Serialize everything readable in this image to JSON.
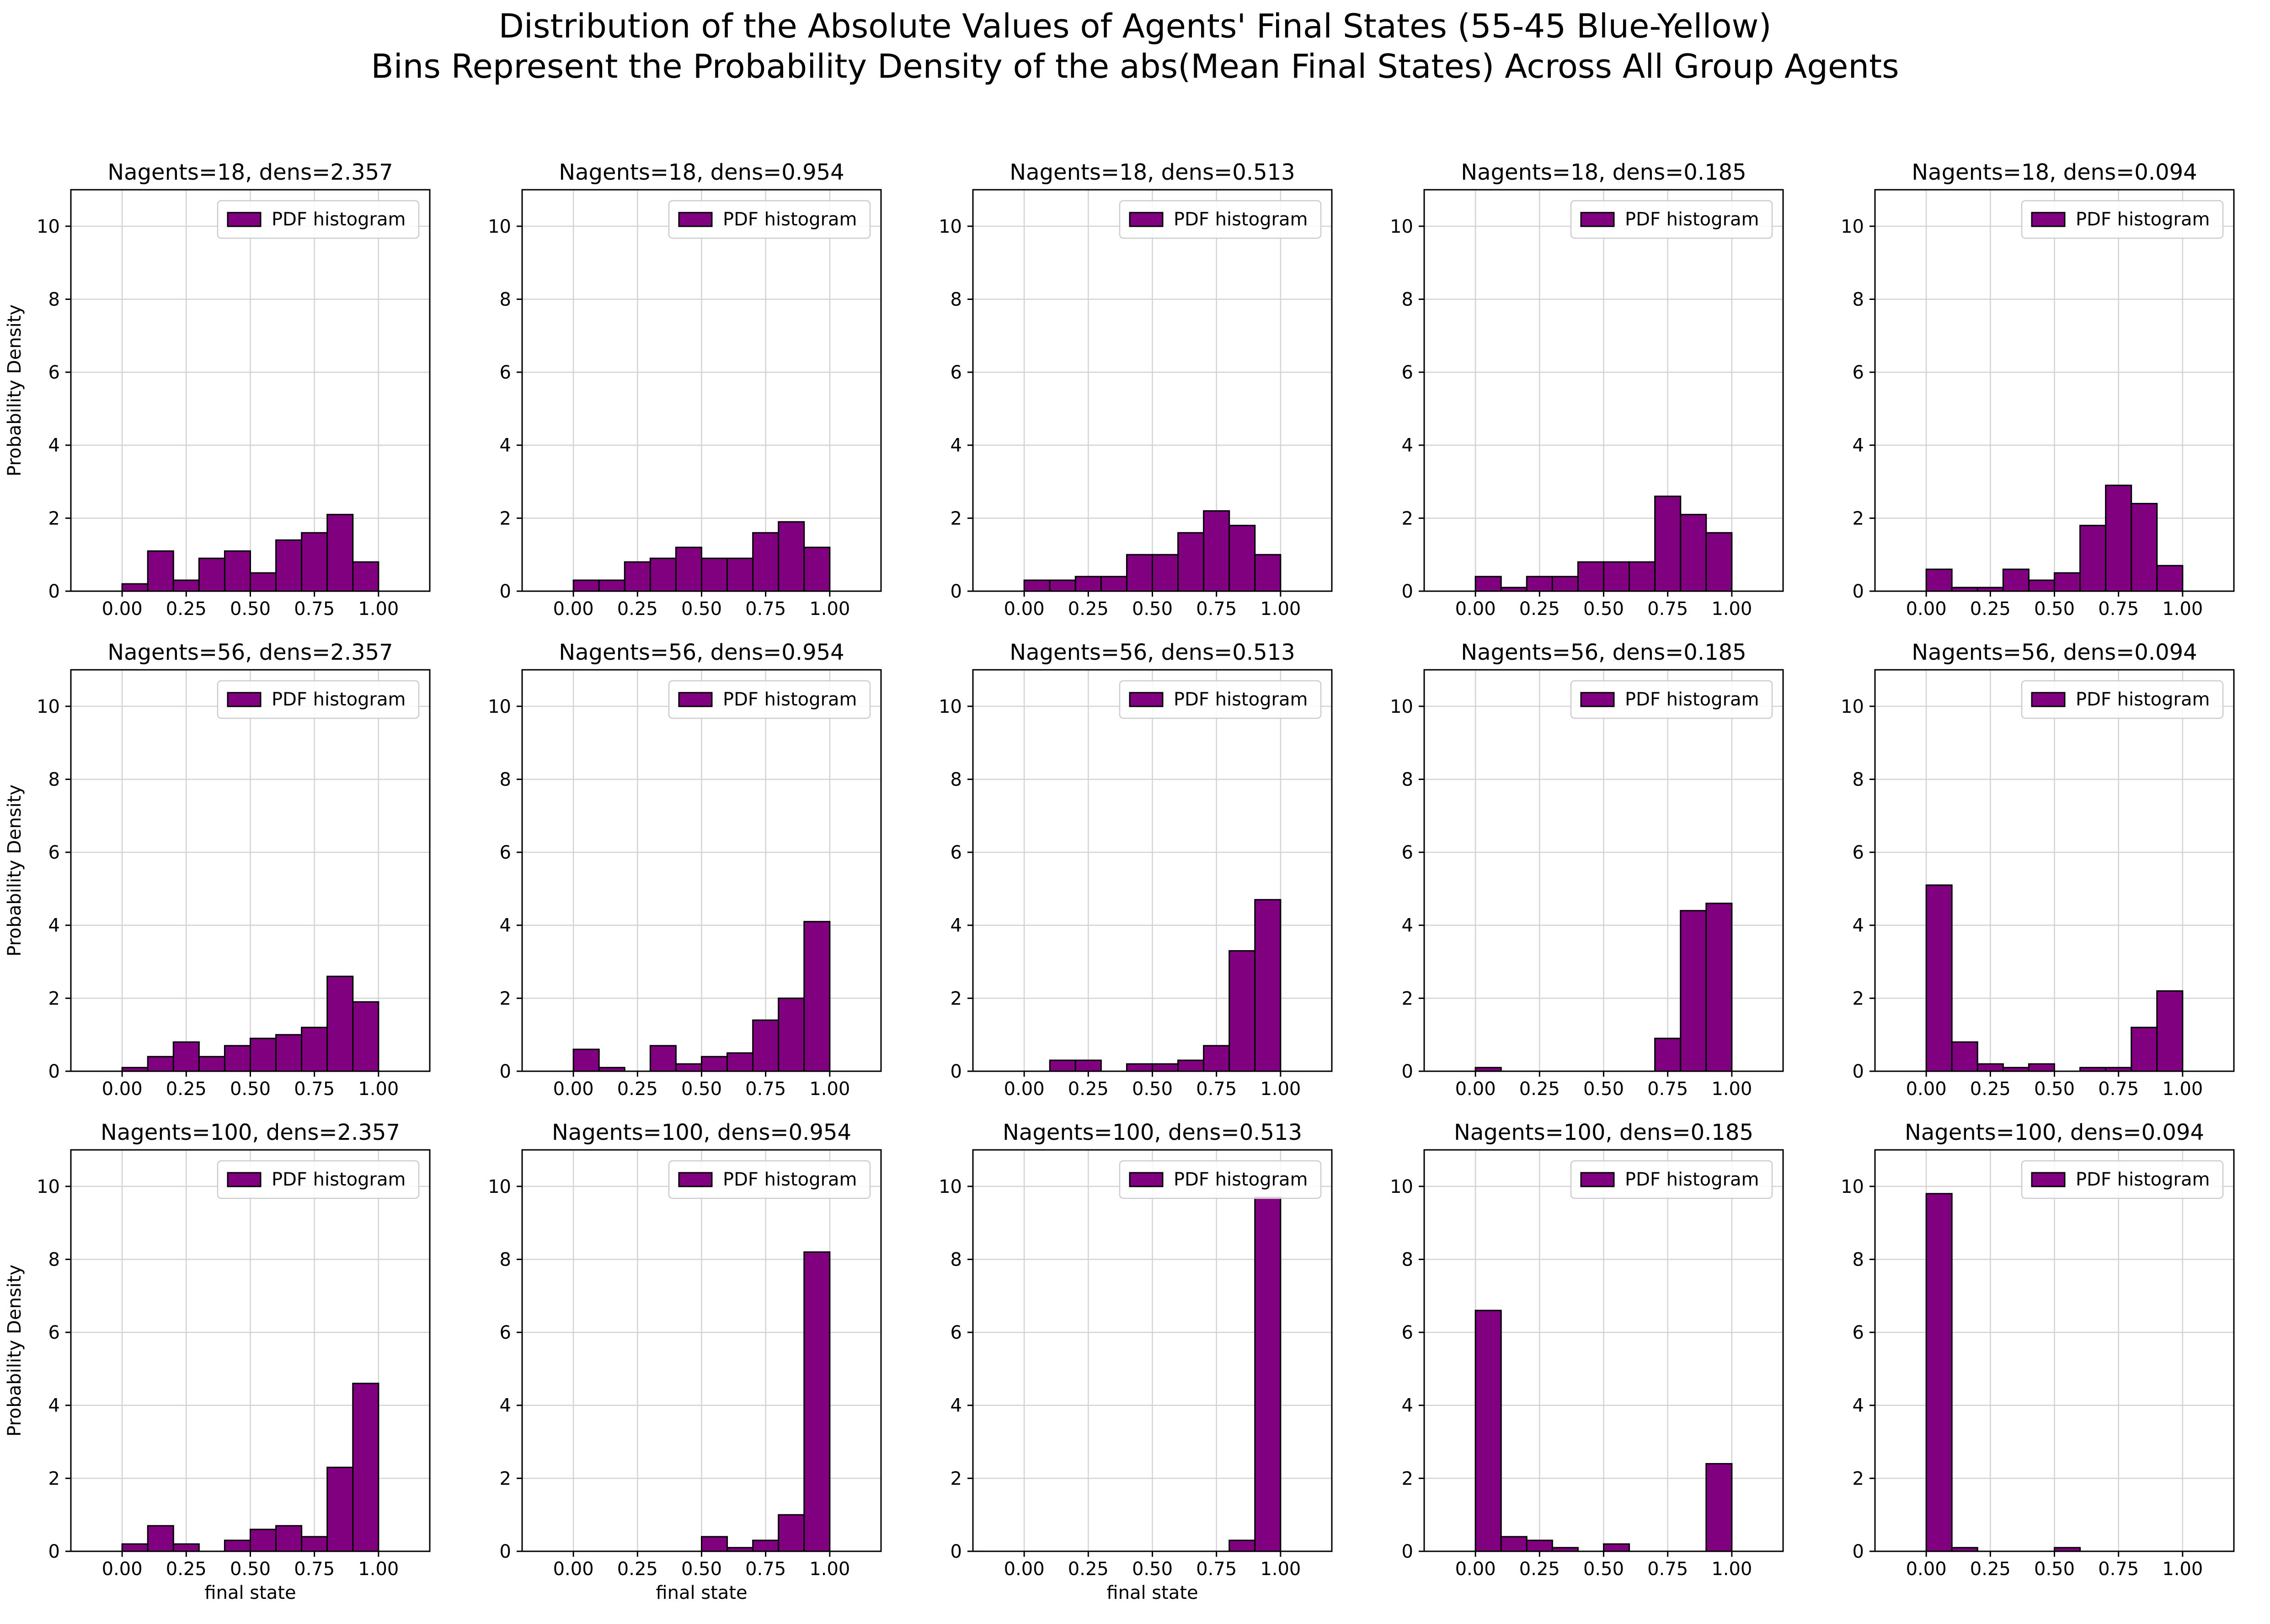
{
  "figure": {
    "title_line1": "Distribution of the Absolute Values of Agents' Final States (55-45 Blue-Yellow)",
    "title_line2": "Bins Represent the Probability Density of the abs(Mean Final States) Across All Group Agents"
  },
  "colors": {
    "bar": "#800080",
    "edge": "#000000",
    "grid": "#d3d3d3"
  },
  "chart_data": [
    {
      "type": "bar",
      "title": "Nagents=18, dens=2.357",
      "ylabel": "Probability Density",
      "xlabel": "",
      "legend": "PDF histogram",
      "legend_loc": "upper right",
      "grid": true,
      "xlim": [
        -0.2,
        1.2
      ],
      "ylim": [
        0,
        11
      ],
      "xticks": [
        "0.00",
        "0.25",
        "0.50",
        "0.75",
        "1.00"
      ],
      "yticks": [
        "0",
        "2",
        "4",
        "6",
        "8",
        "10"
      ],
      "bin_edges": [
        0,
        0.1,
        0.2,
        0.3,
        0.4,
        0.5,
        0.6,
        0.7,
        0.8,
        0.9,
        1.0
      ],
      "values": [
        0.2,
        1.1,
        0.3,
        0.9,
        1.1,
        0.5,
        1.4,
        1.6,
        2.1,
        0.8
      ]
    },
    {
      "type": "bar",
      "title": "Nagents=18, dens=0.954",
      "ylabel": "",
      "xlabel": "",
      "legend": "PDF histogram",
      "legend_loc": "upper right",
      "grid": true,
      "xlim": [
        -0.2,
        1.2
      ],
      "ylim": [
        0,
        11
      ],
      "xticks": [
        "0.00",
        "0.25",
        "0.50",
        "0.75",
        "1.00"
      ],
      "yticks": [
        "0",
        "2",
        "4",
        "6",
        "8",
        "10"
      ],
      "bin_edges": [
        0,
        0.1,
        0.2,
        0.3,
        0.4,
        0.5,
        0.6,
        0.7,
        0.8,
        0.9,
        1.0
      ],
      "values": [
        0.3,
        0.3,
        0.8,
        0.9,
        1.2,
        0.9,
        0.9,
        1.6,
        1.9,
        1.2
      ]
    },
    {
      "type": "bar",
      "title": "Nagents=18, dens=0.513",
      "ylabel": "",
      "xlabel": "",
      "legend": "PDF histogram",
      "legend_loc": "upper right",
      "grid": true,
      "xlim": [
        -0.2,
        1.2
      ],
      "ylim": [
        0,
        11
      ],
      "xticks": [
        "0.00",
        "0.25",
        "0.50",
        "0.75",
        "1.00"
      ],
      "yticks": [
        "0",
        "2",
        "4",
        "6",
        "8",
        "10"
      ],
      "bin_edges": [
        0,
        0.1,
        0.2,
        0.3,
        0.4,
        0.5,
        0.6,
        0.7,
        0.8,
        0.9,
        1.0
      ],
      "values": [
        0.3,
        0.3,
        0.4,
        0.4,
        1.0,
        1.0,
        1.6,
        2.2,
        1.8,
        1.0
      ]
    },
    {
      "type": "bar",
      "title": "Nagents=18, dens=0.185",
      "ylabel": "",
      "xlabel": "",
      "legend": "PDF histogram",
      "legend_loc": "upper right",
      "grid": true,
      "xlim": [
        -0.2,
        1.2
      ],
      "ylim": [
        0,
        11
      ],
      "xticks": [
        "0.00",
        "0.25",
        "0.50",
        "0.75",
        "1.00"
      ],
      "yticks": [
        "0",
        "2",
        "4",
        "6",
        "8",
        "10"
      ],
      "bin_edges": [
        0,
        0.1,
        0.2,
        0.3,
        0.4,
        0.5,
        0.6,
        0.7,
        0.8,
        0.9,
        1.0
      ],
      "values": [
        0.4,
        0.1,
        0.4,
        0.4,
        0.8,
        0.8,
        0.8,
        2.6,
        2.1,
        1.6
      ]
    },
    {
      "type": "bar",
      "title": "Nagents=18, dens=0.094",
      "ylabel": "",
      "xlabel": "",
      "legend": "PDF histogram",
      "legend_loc": "upper right",
      "grid": true,
      "xlim": [
        -0.2,
        1.2
      ],
      "ylim": [
        0,
        11
      ],
      "xticks": [
        "0.00",
        "0.25",
        "0.50",
        "0.75",
        "1.00"
      ],
      "yticks": [
        "0",
        "2",
        "4",
        "6",
        "8",
        "10"
      ],
      "bin_edges": [
        0,
        0.1,
        0.2,
        0.3,
        0.4,
        0.5,
        0.6,
        0.7,
        0.8,
        0.9,
        1.0
      ],
      "values": [
        0.6,
        0.1,
        0.1,
        0.6,
        0.3,
        0.5,
        1.8,
        2.9,
        2.4,
        0.7
      ]
    },
    {
      "type": "bar",
      "title": "Nagents=56, dens=2.357",
      "ylabel": "Probability Density",
      "xlabel": "",
      "legend": "PDF histogram",
      "legend_loc": "upper right",
      "grid": true,
      "xlim": [
        -0.2,
        1.2
      ],
      "ylim": [
        0,
        11
      ],
      "xticks": [
        "0.00",
        "0.25",
        "0.50",
        "0.75",
        "1.00"
      ],
      "yticks": [
        "0",
        "2",
        "4",
        "6",
        "8",
        "10"
      ],
      "bin_edges": [
        0,
        0.1,
        0.2,
        0.3,
        0.4,
        0.5,
        0.6,
        0.7,
        0.8,
        0.9,
        1.0
      ],
      "values": [
        0.1,
        0.4,
        0.8,
        0.4,
        0.7,
        0.9,
        1.0,
        1.2,
        2.6,
        1.9
      ]
    },
    {
      "type": "bar",
      "title": "Nagents=56, dens=0.954",
      "ylabel": "",
      "xlabel": "",
      "legend": "PDF histogram",
      "legend_loc": "upper right",
      "grid": true,
      "xlim": [
        -0.2,
        1.2
      ],
      "ylim": [
        0,
        11
      ],
      "xticks": [
        "0.00",
        "0.25",
        "0.50",
        "0.75",
        "1.00"
      ],
      "yticks": [
        "0",
        "2",
        "4",
        "6",
        "8",
        "10"
      ],
      "bin_edges": [
        0,
        0.1,
        0.2,
        0.3,
        0.4,
        0.5,
        0.6,
        0.7,
        0.8,
        0.9,
        1.0
      ],
      "values": [
        0.6,
        0.1,
        0.0,
        0.7,
        0.2,
        0.4,
        0.5,
        1.4,
        2.0,
        4.1
      ]
    },
    {
      "type": "bar",
      "title": "Nagents=56, dens=0.513",
      "ylabel": "",
      "xlabel": "",
      "legend": "PDF histogram",
      "legend_loc": "upper right",
      "grid": true,
      "xlim": [
        -0.2,
        1.2
      ],
      "ylim": [
        0,
        11
      ],
      "xticks": [
        "0.00",
        "0.25",
        "0.50",
        "0.75",
        "1.00"
      ],
      "yticks": [
        "0",
        "2",
        "4",
        "6",
        "8",
        "10"
      ],
      "bin_edges": [
        0,
        0.1,
        0.2,
        0.3,
        0.4,
        0.5,
        0.6,
        0.7,
        0.8,
        0.9,
        1.0
      ],
      "values": [
        0.0,
        0.3,
        0.3,
        0.0,
        0.2,
        0.2,
        0.3,
        0.7,
        3.3,
        4.7
      ]
    },
    {
      "type": "bar",
      "title": "Nagents=56, dens=0.185",
      "ylabel": "",
      "xlabel": "",
      "legend": "PDF histogram",
      "legend_loc": "upper right",
      "grid": true,
      "xlim": [
        -0.2,
        1.2
      ],
      "ylim": [
        0,
        11
      ],
      "xticks": [
        "0.00",
        "0.25",
        "0.50",
        "0.75",
        "1.00"
      ],
      "yticks": [
        "0",
        "2",
        "4",
        "6",
        "8",
        "10"
      ],
      "bin_edges": [
        0,
        0.1,
        0.2,
        0.3,
        0.4,
        0.5,
        0.6,
        0.7,
        0.8,
        0.9,
        1.0
      ],
      "values": [
        0.1,
        0.0,
        0.0,
        0.0,
        0.0,
        0.0,
        0.0,
        0.9,
        4.4,
        4.6
      ]
    },
    {
      "type": "bar",
      "title": "Nagents=56, dens=0.094",
      "ylabel": "",
      "xlabel": "",
      "legend": "PDF histogram",
      "legend_loc": "upper right",
      "grid": true,
      "xlim": [
        -0.2,
        1.2
      ],
      "ylim": [
        0,
        11
      ],
      "xticks": [
        "0.00",
        "0.25",
        "0.50",
        "0.75",
        "1.00"
      ],
      "yticks": [
        "0",
        "2",
        "4",
        "6",
        "8",
        "10"
      ],
      "bin_edges": [
        0,
        0.1,
        0.2,
        0.3,
        0.4,
        0.5,
        0.6,
        0.7,
        0.8,
        0.9,
        1.0
      ],
      "values": [
        5.1,
        0.8,
        0.2,
        0.1,
        0.2,
        0.0,
        0.1,
        0.1,
        1.2,
        2.2
      ]
    },
    {
      "type": "bar",
      "title": "Nagents=100, dens=2.357",
      "ylabel": "Probability  Density",
      "xlabel": "final state",
      "legend": "PDF histogram",
      "legend_loc": "upper right",
      "grid": true,
      "xlim": [
        -0.2,
        1.2
      ],
      "ylim": [
        0,
        11
      ],
      "xticks": [
        "0.00",
        "0.25",
        "0.50",
        "0.75",
        "1.00"
      ],
      "yticks": [
        "0",
        "2",
        "4",
        "6",
        "8",
        "10"
      ],
      "bin_edges": [
        0,
        0.1,
        0.2,
        0.3,
        0.4,
        0.5,
        0.6,
        0.7,
        0.8,
        0.9,
        1.0
      ],
      "values": [
        0.2,
        0.7,
        0.2,
        0.0,
        0.3,
        0.6,
        0.7,
        0.4,
        2.3,
        4.6
      ]
    },
    {
      "type": "bar",
      "title": "Nagents=100, dens=0.954",
      "ylabel": "",
      "xlabel": "final state",
      "legend": "PDF histogram",
      "legend_loc": "upper right",
      "grid": true,
      "xlim": [
        -0.2,
        1.2
      ],
      "ylim": [
        0,
        11
      ],
      "xticks": [
        "0.00",
        "0.25",
        "0.50",
        "0.75",
        "1.00"
      ],
      "yticks": [
        "0",
        "2",
        "4",
        "6",
        "8",
        "10"
      ],
      "bin_edges": [
        0,
        0.1,
        0.2,
        0.3,
        0.4,
        0.5,
        0.6,
        0.7,
        0.8,
        0.9,
        1.0
      ],
      "values": [
        0.0,
        0.0,
        0.0,
        0.0,
        0.0,
        0.4,
        0.1,
        0.3,
        1.0,
        8.2
      ]
    },
    {
      "type": "bar",
      "title": "Nagents=100, dens=0.513",
      "ylabel": "",
      "xlabel": "final state",
      "legend": "PDF histogram",
      "legend_loc": "upper right",
      "grid": true,
      "xlim": [
        -0.2,
        1.2
      ],
      "ylim": [
        0,
        11
      ],
      "xticks": [
        "0.00",
        "0.25",
        "0.50",
        "0.75",
        "1.00"
      ],
      "yticks": [
        "0",
        "2",
        "4",
        "6",
        "8",
        "10"
      ],
      "bin_edges": [
        0,
        0.1,
        0.2,
        0.3,
        0.4,
        0.5,
        0.6,
        0.7,
        0.8,
        0.9,
        1.0
      ],
      "values": [
        0.0,
        0.0,
        0.0,
        0.0,
        0.0,
        0.0,
        0.0,
        0.0,
        0.3,
        9.7
      ]
    },
    {
      "type": "bar",
      "title": "Nagents=100, dens=0.185",
      "ylabel": "",
      "xlabel": "",
      "legend": "PDF histogram",
      "legend_loc": "upper right",
      "grid": true,
      "xlim": [
        -0.2,
        1.2
      ],
      "ylim": [
        0,
        11
      ],
      "xticks": [
        "0.00",
        "0.25",
        "0.50",
        "0.75",
        "1.00"
      ],
      "yticks": [
        "0",
        "2",
        "4",
        "6",
        "8",
        "10"
      ],
      "bin_edges": [
        0,
        0.1,
        0.2,
        0.3,
        0.4,
        0.5,
        0.6,
        0.7,
        0.8,
        0.9,
        1.0
      ],
      "values": [
        6.6,
        0.4,
        0.3,
        0.1,
        0.0,
        0.2,
        0.0,
        0.0,
        0.0,
        2.4
      ]
    },
    {
      "type": "bar",
      "title": "Nagents=100, dens=0.094",
      "ylabel": "",
      "xlabel": "",
      "legend": "PDF histogram",
      "legend_loc": "upper right",
      "grid": true,
      "xlim": [
        -0.2,
        1.2
      ],
      "ylim": [
        0,
        11
      ],
      "xticks": [
        "0.00",
        "0.25",
        "0.50",
        "0.75",
        "1.00"
      ],
      "yticks": [
        "0",
        "2",
        "4",
        "6",
        "8",
        "10"
      ],
      "bin_edges": [
        0,
        0.1,
        0.2,
        0.3,
        0.4,
        0.5,
        0.6,
        0.7,
        0.8,
        0.9,
        1.0
      ],
      "values": [
        9.8,
        0.1,
        0.0,
        0.0,
        0.0,
        0.1,
        0.0,
        0.0,
        0.0,
        0.0
      ]
    }
  ]
}
